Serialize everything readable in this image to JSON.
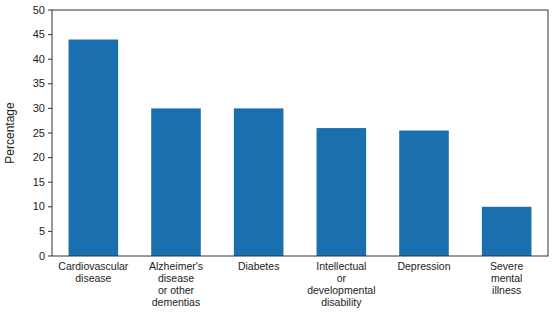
{
  "chart_data": {
    "type": "bar",
    "categories": [
      "Cardiovascular\ndisease",
      "Alzheimer's\ndisease\nor other\ndementias",
      "Diabetes",
      "Intellectual\nor\ndevelopmental\ndisability",
      "Depression",
      "Severe\nmental\nillness"
    ],
    "values": [
      44,
      30,
      30,
      26,
      25.5,
      10
    ],
    "color": "#1a6faf",
    "ylabel": "Percentage",
    "ylim": [
      0,
      50
    ],
    "yticks": [
      0,
      5,
      10,
      15,
      20,
      25,
      30,
      35,
      40,
      45,
      50
    ],
    "grid": false
  }
}
